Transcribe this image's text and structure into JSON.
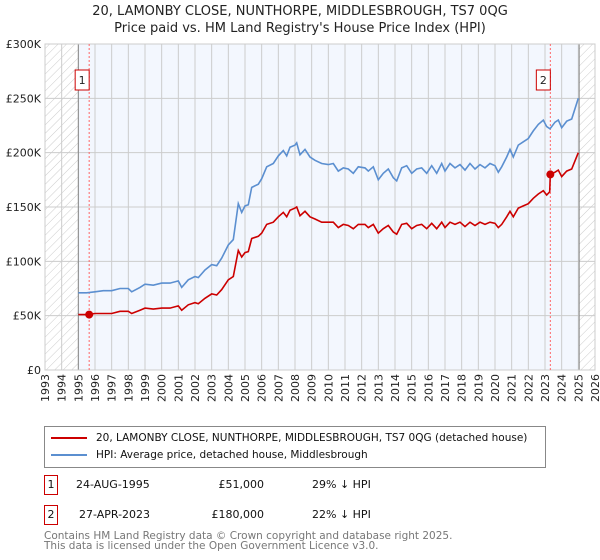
{
  "chart_data": {
    "type": "line",
    "title": "20, LAMONBY CLOSE, NUNTHORPE, MIDDLESBROUGH, TS7 0QG",
    "subtitle": "Price paid vs. HM Land Registry's House Price Index (HPI)",
    "xlim": [
      1993,
      2026
    ],
    "ylim": [
      0,
      300000
    ],
    "x_ticks": [
      "1993",
      "1994",
      "1995",
      "1996",
      "1997",
      "1998",
      "1999",
      "2000",
      "2001",
      "2002",
      "2003",
      "2004",
      "2005",
      "2006",
      "2007",
      "2008",
      "2009",
      "2010",
      "2011",
      "2012",
      "2013",
      "2014",
      "2015",
      "2016",
      "2017",
      "2018",
      "2019",
      "2020",
      "2021",
      "2022",
      "2023",
      "2024",
      "2025",
      "2026"
    ],
    "y_ticks": [
      {
        "v": 0,
        "label": "£0"
      },
      {
        "v": 50000,
        "label": "£50K"
      },
      {
        "v": 100000,
        "label": "£100K"
      },
      {
        "v": 150000,
        "label": "£150K"
      },
      {
        "v": 200000,
        "label": "£200K"
      },
      {
        "v": 250000,
        "label": "£250K"
      },
      {
        "v": 300000,
        "label": "£300K"
      }
    ],
    "hatched_ranges": [
      [
        1993,
        1995
      ],
      [
        2025.05,
        2026
      ]
    ],
    "grid": true,
    "series": [
      {
        "name": "20, LAMONBY CLOSE, NUNTHORPE, MIDDLESBROUGH, TS7 0QG (detached house)",
        "color": "#cc0000",
        "points": [
          [
            1995.0,
            51
          ],
          [
            1995.5,
            51
          ],
          [
            1996,
            52
          ],
          [
            1996.5,
            52
          ],
          [
            1997,
            52
          ],
          [
            1997.5,
            54
          ],
          [
            1998,
            54
          ],
          [
            1998.2,
            52
          ],
          [
            1998.7,
            55
          ],
          [
            1999,
            57
          ],
          [
            1999.5,
            56
          ],
          [
            2000,
            57
          ],
          [
            2000.5,
            57
          ],
          [
            2001,
            59
          ],
          [
            2001.2,
            55
          ],
          [
            2001.6,
            60
          ],
          [
            2002,
            62
          ],
          [
            2002.2,
            61
          ],
          [
            2002.6,
            66
          ],
          [
            2003,
            70
          ],
          [
            2003.3,
            69
          ],
          [
            2003.6,
            74
          ],
          [
            2004,
            83
          ],
          [
            2004.3,
            86
          ],
          [
            2004.6,
            110
          ],
          [
            2004.8,
            104
          ],
          [
            2005,
            108
          ],
          [
            2005.2,
            109
          ],
          [
            2005.4,
            121
          ],
          [
            2005.8,
            123
          ],
          [
            2006,
            126
          ],
          [
            2006.3,
            134
          ],
          [
            2006.7,
            136
          ],
          [
            2007,
            141
          ],
          [
            2007.3,
            145
          ],
          [
            2007.5,
            141
          ],
          [
            2007.7,
            147
          ],
          [
            2008,
            149
          ],
          [
            2008.1,
            150
          ],
          [
            2008.3,
            142
          ],
          [
            2008.6,
            146
          ],
          [
            2008.9,
            141
          ],
          [
            2009.2,
            139
          ],
          [
            2009.6,
            136
          ],
          [
            2010,
            136
          ],
          [
            2010.3,
            136
          ],
          [
            2010.6,
            131
          ],
          [
            2010.9,
            134
          ],
          [
            2011.2,
            133
          ],
          [
            2011.5,
            130
          ],
          [
            2011.8,
            134
          ],
          [
            2012.2,
            134
          ],
          [
            2012.4,
            131
          ],
          [
            2012.7,
            134
          ],
          [
            2013,
            126
          ],
          [
            2013.3,
            130
          ],
          [
            2013.6,
            133
          ],
          [
            2013.9,
            127
          ],
          [
            2014.1,
            125
          ],
          [
            2014.4,
            134
          ],
          [
            2014.7,
            135
          ],
          [
            2015,
            130
          ],
          [
            2015.3,
            133
          ],
          [
            2015.6,
            134
          ],
          [
            2015.9,
            130
          ],
          [
            2016.2,
            135
          ],
          [
            2016.5,
            130
          ],
          [
            2016.8,
            136
          ],
          [
            2017,
            131
          ],
          [
            2017.3,
            136
          ],
          [
            2017.6,
            134
          ],
          [
            2017.9,
            136
          ],
          [
            2018.2,
            132
          ],
          [
            2018.5,
            136
          ],
          [
            2018.8,
            133
          ],
          [
            2019.1,
            136
          ],
          [
            2019.4,
            134
          ],
          [
            2019.7,
            136
          ],
          [
            2020,
            135
          ],
          [
            2020.2,
            131
          ],
          [
            2020.4,
            134
          ],
          [
            2020.7,
            141
          ],
          [
            2020.9,
            146
          ],
          [
            2021.1,
            141
          ],
          [
            2021.4,
            149
          ],
          [
            2021.7,
            151
          ],
          [
            2022,
            153
          ],
          [
            2022.3,
            158
          ],
          [
            2022.6,
            162
          ],
          [
            2022.9,
            165
          ],
          [
            2023.1,
            161
          ],
          [
            2023.28,
            164
          ],
          [
            2023.32,
            180
          ],
          [
            2023.6,
            182
          ],
          [
            2023.8,
            184
          ],
          [
            2024.0,
            178
          ],
          [
            2024.3,
            183
          ],
          [
            2024.6,
            185
          ],
          [
            2025.0,
            200
          ]
        ]
      },
      {
        "name": "HPI: Average price, detached house, Middlesbrough",
        "color": "#5b8fd0",
        "points": [
          [
            1995.0,
            71
          ],
          [
            1995.5,
            71
          ],
          [
            1996,
            72
          ],
          [
            1996.5,
            73
          ],
          [
            1997,
            73
          ],
          [
            1997.5,
            75
          ],
          [
            1998,
            75
          ],
          [
            1998.2,
            72
          ],
          [
            1998.7,
            76
          ],
          [
            1999,
            79
          ],
          [
            1999.5,
            78
          ],
          [
            2000,
            80
          ],
          [
            2000.5,
            80
          ],
          [
            2001,
            82
          ],
          [
            2001.2,
            76
          ],
          [
            2001.6,
            83
          ],
          [
            2002,
            86
          ],
          [
            2002.2,
            85
          ],
          [
            2002.6,
            92
          ],
          [
            2003,
            97
          ],
          [
            2003.3,
            96
          ],
          [
            2003.6,
            103
          ],
          [
            2004,
            115
          ],
          [
            2004.3,
            120
          ],
          [
            2004.6,
            153
          ],
          [
            2004.8,
            145
          ],
          [
            2005,
            151
          ],
          [
            2005.2,
            152
          ],
          [
            2005.4,
            168
          ],
          [
            2005.8,
            171
          ],
          [
            2006,
            176
          ],
          [
            2006.3,
            187
          ],
          [
            2006.7,
            190
          ],
          [
            2007,
            197
          ],
          [
            2007.3,
            202
          ],
          [
            2007.5,
            197
          ],
          [
            2007.7,
            205
          ],
          [
            2008,
            207
          ],
          [
            2008.1,
            209
          ],
          [
            2008.3,
            198
          ],
          [
            2008.6,
            203
          ],
          [
            2008.9,
            196
          ],
          [
            2009.2,
            193
          ],
          [
            2009.6,
            190
          ],
          [
            2010,
            189
          ],
          [
            2010.3,
            190
          ],
          [
            2010.6,
            183
          ],
          [
            2010.9,
            186
          ],
          [
            2011.2,
            185
          ],
          [
            2011.5,
            181
          ],
          [
            2011.8,
            187
          ],
          [
            2012.2,
            186
          ],
          [
            2012.4,
            183
          ],
          [
            2012.7,
            187
          ],
          [
            2013,
            175
          ],
          [
            2013.3,
            181
          ],
          [
            2013.6,
            185
          ],
          [
            2013.9,
            177
          ],
          [
            2014.1,
            174
          ],
          [
            2014.4,
            186
          ],
          [
            2014.7,
            188
          ],
          [
            2015,
            181
          ],
          [
            2015.3,
            185
          ],
          [
            2015.6,
            186
          ],
          [
            2015.9,
            181
          ],
          [
            2016.2,
            188
          ],
          [
            2016.5,
            181
          ],
          [
            2016.8,
            190
          ],
          [
            2017,
            183
          ],
          [
            2017.3,
            190
          ],
          [
            2017.6,
            186
          ],
          [
            2017.9,
            189
          ],
          [
            2018.2,
            184
          ],
          [
            2018.5,
            190
          ],
          [
            2018.8,
            185
          ],
          [
            2019.1,
            189
          ],
          [
            2019.4,
            186
          ],
          [
            2019.7,
            190
          ],
          [
            2020,
            188
          ],
          [
            2020.2,
            182
          ],
          [
            2020.4,
            187
          ],
          [
            2020.7,
            196
          ],
          [
            2020.9,
            203
          ],
          [
            2021.1,
            196
          ],
          [
            2021.4,
            207
          ],
          [
            2021.7,
            210
          ],
          [
            2022,
            213
          ],
          [
            2022.3,
            220
          ],
          [
            2022.6,
            226
          ],
          [
            2022.9,
            230
          ],
          [
            2023.1,
            224
          ],
          [
            2023.3,
            222
          ],
          [
            2023.6,
            228
          ],
          [
            2023.8,
            230
          ],
          [
            2024.0,
            223
          ],
          [
            2024.3,
            229
          ],
          [
            2024.6,
            231
          ],
          [
            2025.0,
            250
          ]
        ]
      }
    ],
    "y_unit": "thousands GBP",
    "sales": [
      {
        "id": "1",
        "x": 1995.65,
        "price": 51000,
        "date": "24-AUG-1995",
        "price_label": "£51,000",
        "hpi_diff": "29% ↓ HPI"
      },
      {
        "id": "2",
        "x": 2023.32,
        "price": 180000,
        "date": "27-APR-2023",
        "price_label": "£180,000",
        "hpi_diff": "22% ↓ HPI"
      }
    ],
    "legend_position": "below"
  },
  "footer": {
    "line1": "Contains HM Land Registry data © Crown copyright and database right 2025.",
    "line2": "This data is licensed under the Open Government Licence v3.0."
  }
}
